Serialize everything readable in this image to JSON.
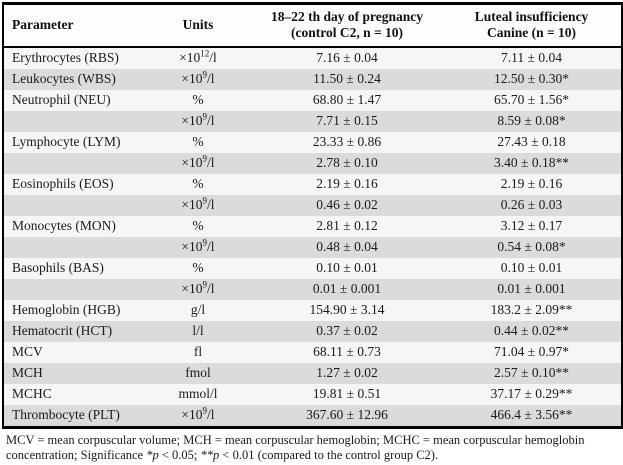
{
  "header": {
    "col1": "Parameter",
    "col2": "Units",
    "col3_line1": "18–22 th day of pregnancy",
    "col3_line2": "(control C2, n = 10)",
    "col4_line1": "Luteal insufficiency",
    "col4_line2": "Canine (n = 10)"
  },
  "table": {
    "rows": [
      {
        "parameter": "Erythrocytes (RBS)",
        "units": "×10^12/l",
        "control": "7.16 ± 0.04",
        "canine": "7.11 ± 0.04"
      },
      {
        "parameter": "Leukocytes (WBS)",
        "units": "×10^9/l",
        "control": "11.50 ± 0.24",
        "canine": "12.50 ± 0.30*"
      },
      {
        "parameter": "Neutrophil (NEU)",
        "units": "%",
        "control": "68.80 ± 1.47",
        "canine": "65.70 ± 1.56*"
      },
      {
        "parameter": "",
        "units": "×10^9/l",
        "control": "7.71 ± 0.15",
        "canine": "8.59 ± 0.08*"
      },
      {
        "parameter": "Lymphocyte (LYM)",
        "units": "%",
        "control": "23.33 ± 0.86",
        "canine": "27.43 ± 0.18"
      },
      {
        "parameter": "",
        "units": "×10^9/l",
        "control": "2.78 ± 0.10",
        "canine": "3.40 ± 0.18**"
      },
      {
        "parameter": "Eosinophils (EOS)",
        "units": "%",
        "control": "2.19 ± 0.16",
        "canine": "2.19 ± 0.16"
      },
      {
        "parameter": "",
        "units": "×10^9/l",
        "control": "0.46 ± 0.02",
        "canine": "0.26 ± 0.03"
      },
      {
        "parameter": "Monocytes (MON)",
        "units": "%",
        "control": "2.81 ± 0.12",
        "canine": "3.12 ± 0.17"
      },
      {
        "parameter": "",
        "units": "×10^9/l",
        "control": "0.48 ± 0.04",
        "canine": "0.54 ± 0.08*"
      },
      {
        "parameter": "Basophils (BAS)",
        "units": "%",
        "control": "0.10 ± 0.01",
        "canine": "0.10 ± 0.01"
      },
      {
        "parameter": "",
        "units": "×10^9/l",
        "control": "0.01 ± 0.001",
        "canine": "0.01 ± 0.001"
      },
      {
        "parameter": "Hemoglobin (HGB)",
        "units": "g/l",
        "control": "154.90 ± 3.14",
        "canine": "183.2 ± 2.09**"
      },
      {
        "parameter": "Hematocrit (HCT)",
        "units": "l/l",
        "control": "0.37 ± 0.02",
        "canine": "0.44 ± 0.02**"
      },
      {
        "parameter": "MCV",
        "units": "fl",
        "control": "68.11 ± 0.73",
        "canine": "71.04 ± 0.97*"
      },
      {
        "parameter": "MCH",
        "units": "fmol",
        "control": "1.27 ± 0.02",
        "canine": "2.57 ± 0.10**"
      },
      {
        "parameter": "MCHC",
        "units": "mmol/l",
        "control": "19.81 ± 0.51",
        "canine": "37.17 ± 0.29**"
      },
      {
        "parameter": "Thrombocyte (PLT)",
        "units": "×10^9/l",
        "control": "367.60 ± 12.96",
        "canine": "466.4 ± 3.56**"
      }
    ]
  },
  "footnote": {
    "segments": [
      {
        "text": "MCV = mean corpuscular volume; MCH = mean corpuscular hemoglobin; MCHC = mean corpuscular hemoglobin concentration; Significance ",
        "italic": false
      },
      {
        "text": "*p",
        "italic": true
      },
      {
        "text": " < 0.05; ",
        "italic": false
      },
      {
        "text": "**p",
        "italic": true
      },
      {
        "text": " < 0.01 (compared to the control group C2).",
        "italic": false
      }
    ]
  },
  "colors": {
    "stripe_light": "#f6f6f7",
    "stripe_dark": "#dbdbdc",
    "border": "#000000",
    "text": "#1a1a1a"
  }
}
